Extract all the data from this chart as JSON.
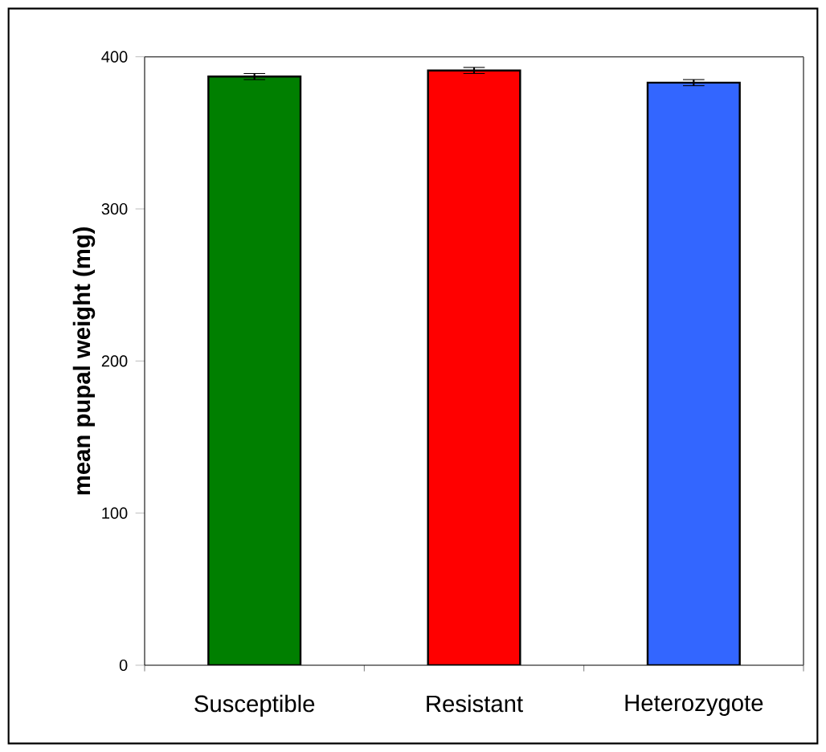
{
  "chart_data": {
    "type": "bar",
    "ylabel": "mean pupal weight (mg)",
    "categories": [
      "Susceptible",
      "Resistant",
      "Heterozygote"
    ],
    "values": [
      387,
      391,
      383
    ],
    "errors": [
      2,
      2,
      2
    ],
    "colors": [
      "#007f00",
      "#ff0000",
      "#3366ff"
    ],
    "ylim": [
      0,
      400
    ],
    "yticks": [
      0,
      100,
      200,
      300,
      400
    ],
    "grid": false
  }
}
